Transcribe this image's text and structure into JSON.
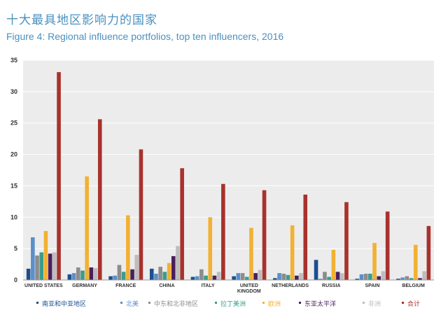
{
  "titles": {
    "cn": "十大最具地区影响力的国家",
    "en": "Figure 4: Regional influence portfolios, top ten influencers, 2016"
  },
  "chart_data": {
    "type": "bar",
    "ylim": [
      0,
      35
    ],
    "yticks": [
      0,
      5,
      10,
      15,
      20,
      25,
      30,
      35
    ],
    "grid": true,
    "legend_position": "bottom",
    "categories": [
      [
        "UNITED STATES"
      ],
      [
        "GERMANY"
      ],
      [
        "FRANCE"
      ],
      [
        "CHINA"
      ],
      [
        "ITALY"
      ],
      [
        "UNITED",
        "KINGDOM"
      ],
      [
        "NETHERLANDS"
      ],
      [
        "RUSSIA"
      ],
      [
        "SPAIN"
      ],
      [
        "BELGIUM"
      ]
    ],
    "series": [
      {
        "name": "南亚和中亚地区",
        "color": "#1c4f8f",
        "values": [
          1.8,
          0.9,
          0.6,
          1.8,
          0.5,
          0.6,
          0.3,
          3.2,
          0.2,
          0.2
        ]
      },
      {
        "name": "北美",
        "color": "#5b8fc9",
        "values": [
          6.8,
          1.1,
          0.7,
          1.0,
          0.6,
          1.1,
          1.1,
          0.2,
          0.9,
          0.4
        ]
      },
      {
        "name": "中东和北非地区",
        "color": "#8c8c8c",
        "values": [
          3.9,
          2.0,
          2.4,
          2.1,
          1.7,
          1.1,
          1.0,
          1.3,
          1.0,
          0.6
        ]
      },
      {
        "name": "拉丁美洲",
        "color": "#3a9c8c",
        "values": [
          4.4,
          1.5,
          1.3,
          1.3,
          0.7,
          0.5,
          0.8,
          0.5,
          1.0,
          0.3
        ]
      },
      {
        "name": "欧洲",
        "color": "#f2b134",
        "values": [
          7.8,
          16.5,
          10.3,
          2.7,
          10.0,
          8.3,
          8.7,
          4.8,
          5.9,
          5.6
        ]
      },
      {
        "name": "东亚太平洋",
        "color": "#4a1f5c",
        "values": [
          4.2,
          2.0,
          1.7,
          3.8,
          0.7,
          1.1,
          0.7,
          1.3,
          0.6,
          0.3
        ]
      },
      {
        "name": "非洲",
        "color": "#bdbdbd",
        "values": [
          4.4,
          1.9,
          4.0,
          5.4,
          1.3,
          1.6,
          1.1,
          1.1,
          1.4,
          1.4
        ]
      },
      {
        "name": "合计",
        "color": "#a8322d",
        "values": [
          33.1,
          25.6,
          20.8,
          17.8,
          15.3,
          14.3,
          13.6,
          12.4,
          10.9,
          8.6
        ]
      }
    ]
  }
}
